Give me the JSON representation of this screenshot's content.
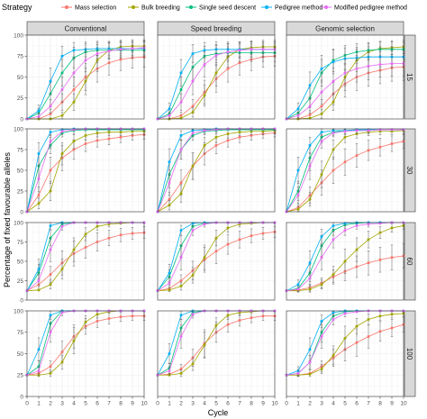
{
  "chart_data": {
    "type": "line",
    "legend_title": "Strategy",
    "legend_placement": "top",
    "xlabel": "Cycle",
    "ylabel": "Percentage of fixed favourable alleles",
    "xlim": [
      0,
      10
    ],
    "ylim": [
      0,
      100
    ],
    "x_ticks": [
      0,
      1,
      2,
      3,
      4,
      5,
      6,
      7,
      8,
      9,
      10
    ],
    "y_ticks": [
      0,
      25,
      50,
      75,
      100
    ],
    "grid": true,
    "error_bars": true,
    "columns": [
      "Conventional",
      "Speed breeding",
      "Genomic selection"
    ],
    "rows": [
      "15",
      "30",
      "60",
      "100"
    ],
    "series": [
      {
        "name": "Mass selection",
        "color": "#F8766D"
      },
      {
        "name": "Bulk breeding",
        "color": "#A3A500"
      },
      {
        "name": "Single seed descent",
        "color": "#00BF7D"
      },
      {
        "name": "Pedigree method",
        "color": "#00B0F6"
      },
      {
        "name": "Modified pedigree method",
        "color": "#E76BF3"
      }
    ],
    "panels": [
      {
        "row": "15",
        "column": "Conventional",
        "x": [
          0,
          1,
          2,
          3,
          4,
          5,
          6,
          7,
          8,
          9,
          10
        ],
        "values": [
          [
            0,
            0,
            6,
            20,
            35,
            50,
            60,
            67,
            71,
            73,
            74
          ],
          [
            0,
            0,
            0,
            4,
            20,
            45,
            70,
            82,
            86,
            87,
            87
          ],
          [
            0,
            7,
            30,
            55,
            73,
            80,
            82,
            82,
            82,
            82,
            82
          ],
          [
            0,
            10,
            45,
            75,
            82,
            83,
            84,
            84,
            84,
            84,
            84
          ],
          [
            0,
            3,
            15,
            35,
            55,
            70,
            78,
            81,
            83,
            84,
            85
          ]
        ]
      },
      {
        "row": "15",
        "column": "Speed breeding",
        "x": [
          0,
          1,
          2,
          3,
          4,
          5,
          6,
          7,
          8,
          9,
          10
        ],
        "values": [
          [
            0,
            0,
            4,
            15,
            32,
            48,
            60,
            67,
            71,
            74,
            75
          ],
          [
            0,
            0,
            1,
            8,
            28,
            55,
            74,
            83,
            85,
            86,
            86
          ],
          [
            0,
            6,
            35,
            62,
            75,
            78,
            79,
            79,
            79,
            79,
            79
          ],
          [
            0,
            12,
            55,
            78,
            82,
            83,
            83,
            83,
            83,
            83,
            83
          ],
          [
            0,
            4,
            20,
            45,
            65,
            76,
            80,
            82,
            83,
            83,
            83
          ]
        ]
      },
      {
        "row": "15",
        "column": "Genomic selection",
        "x": [
          0,
          1,
          2,
          3,
          4,
          5,
          6,
          7,
          8,
          9,
          10
        ],
        "values": [
          [
            0,
            0,
            5,
            15,
            30,
            42,
            50,
            55,
            58,
            61,
            62
          ],
          [
            0,
            0,
            1,
            6,
            20,
            50,
            70,
            80,
            84,
            85,
            86
          ],
          [
            0,
            7,
            25,
            55,
            70,
            76,
            80,
            82,
            83,
            83,
            83
          ],
          [
            0,
            12,
            40,
            60,
            68,
            72,
            73,
            74,
            74,
            74,
            74
          ],
          [
            0,
            4,
            15,
            32,
            45,
            55,
            60,
            63,
            65,
            66,
            66
          ]
        ]
      },
      {
        "row": "30",
        "column": "Conventional",
        "x": [
          0,
          1,
          2,
          3,
          4,
          5,
          6,
          7,
          8,
          9,
          10
        ],
        "values": [
          [
            0,
            20,
            50,
            65,
            75,
            82,
            86,
            88,
            90,
            92,
            93
          ],
          [
            0,
            10,
            25,
            70,
            85,
            92,
            95,
            96,
            96,
            97,
            97
          ],
          [
            0,
            55,
            80,
            95,
            98,
            99,
            99,
            99,
            99,
            99,
            99
          ],
          [
            0,
            70,
            96,
            99,
            100,
            100,
            100,
            100,
            100,
            100,
            100
          ],
          [
            0,
            40,
            85,
            97,
            99,
            100,
            100,
            100,
            100,
            100,
            100
          ]
        ]
      },
      {
        "row": "30",
        "column": "Speed breeding",
        "x": [
          0,
          1,
          2,
          3,
          4,
          5,
          6,
          7,
          8,
          9,
          10
        ],
        "values": [
          [
            0,
            15,
            35,
            55,
            70,
            80,
            86,
            90,
            92,
            94,
            95
          ],
          [
            0,
            8,
            22,
            55,
            80,
            90,
            94,
            96,
            97,
            97,
            98
          ],
          [
            0,
            45,
            75,
            92,
            97,
            98,
            99,
            99,
            99,
            99,
            99
          ],
          [
            0,
            60,
            92,
            98,
            99,
            100,
            100,
            100,
            100,
            100,
            100
          ],
          [
            0,
            35,
            75,
            95,
            98,
            99,
            100,
            100,
            100,
            100,
            100
          ]
        ]
      },
      {
        "row": "30",
        "column": "Genomic selection",
        "x": [
          0,
          1,
          2,
          3,
          4,
          5,
          6,
          7,
          8,
          9,
          10
        ],
        "values": [
          [
            0,
            5,
            20,
            35,
            50,
            60,
            68,
            74,
            78,
            82,
            85
          ],
          [
            0,
            3,
            15,
            45,
            75,
            90,
            94,
            96,
            97,
            97,
            98
          ],
          [
            0,
            25,
            65,
            90,
            96,
            98,
            98,
            98,
            99,
            99,
            99
          ],
          [
            0,
            50,
            80,
            96,
            98,
            98,
            99,
            99,
            99,
            99,
            99
          ],
          [
            0,
            20,
            55,
            85,
            95,
            97,
            98,
            98,
            99,
            99,
            99
          ]
        ]
      },
      {
        "row": "60",
        "column": "Conventional",
        "x": [
          0,
          1,
          2,
          3,
          4,
          5,
          6,
          7,
          8,
          9,
          10
        ],
        "values": [
          [
            12,
            20,
            33,
            48,
            60,
            68,
            75,
            80,
            84,
            86,
            87
          ],
          [
            12,
            13,
            20,
            40,
            65,
            85,
            95,
            98,
            99,
            100,
            100
          ],
          [
            12,
            35,
            80,
            98,
            100,
            100,
            100,
            100,
            100,
            100,
            100
          ],
          [
            12,
            40,
            96,
            100,
            100,
            100,
            100,
            100,
            100,
            100,
            100
          ],
          [
            12,
            25,
            65,
            95,
            100,
            100,
            100,
            100,
            100,
            100,
            100
          ]
        ]
      },
      {
        "row": "60",
        "column": "Speed breeding",
        "x": [
          0,
          1,
          2,
          3,
          4,
          5,
          6,
          7,
          8,
          9,
          10
        ],
        "values": [
          [
            12,
            15,
            25,
            38,
            52,
            63,
            72,
            78,
            83,
            86,
            88
          ],
          [
            12,
            13,
            18,
            32,
            55,
            80,
            93,
            98,
            99,
            100,
            100
          ],
          [
            12,
            30,
            70,
            95,
            99,
            100,
            100,
            100,
            100,
            100,
            100
          ],
          [
            12,
            35,
            90,
            99,
            100,
            100,
            100,
            100,
            100,
            100,
            100
          ],
          [
            12,
            22,
            55,
            90,
            98,
            100,
            100,
            100,
            100,
            100,
            100
          ]
        ]
      },
      {
        "row": "60",
        "column": "Genomic selection",
        "x": [
          0,
          1,
          2,
          3,
          4,
          5,
          6,
          7,
          8,
          9,
          10
        ],
        "values": [
          [
            12,
            13,
            16,
            22,
            30,
            37,
            43,
            48,
            52,
            55,
            57
          ],
          [
            12,
            12,
            14,
            20,
            33,
            50,
            65,
            78,
            87,
            93,
            96
          ],
          [
            12,
            15,
            35,
            70,
            90,
            97,
            99,
            100,
            100,
            100,
            100
          ],
          [
            12,
            20,
            48,
            82,
            96,
            99,
            100,
            100,
            100,
            100,
            100
          ],
          [
            12,
            14,
            28,
            55,
            78,
            90,
            96,
            98,
            99,
            100,
            100
          ]
        ]
      },
      {
        "row": "100",
        "column": "Conventional",
        "x": [
          0,
          1,
          2,
          3,
          4,
          5,
          6,
          7,
          8,
          9,
          10
        ],
        "values": [
          [
            25,
            27,
            35,
            52,
            70,
            82,
            88,
            91,
            93,
            94,
            94
          ],
          [
            25,
            25,
            27,
            40,
            65,
            87,
            96,
            99,
            100,
            100,
            100
          ],
          [
            25,
            35,
            85,
            100,
            100,
            100,
            100,
            100,
            100,
            100,
            100
          ],
          [
            25,
            55,
            95,
            100,
            100,
            100,
            100,
            100,
            100,
            100,
            100
          ],
          [
            25,
            30,
            75,
            98,
            100,
            100,
            100,
            100,
            100,
            100,
            100
          ]
        ]
      },
      {
        "row": "100",
        "column": "Speed breeding",
        "x": [
          0,
          1,
          2,
          3,
          4,
          5,
          6,
          7,
          8,
          9,
          10
        ],
        "values": [
          [
            25,
            26,
            32,
            45,
            62,
            75,
            84,
            89,
            92,
            94,
            94
          ],
          [
            25,
            25,
            27,
            38,
            60,
            83,
            95,
            98,
            99,
            100,
            100
          ],
          [
            25,
            33,
            80,
            98,
            100,
            100,
            100,
            100,
            100,
            100,
            100
          ],
          [
            25,
            50,
            95,
            100,
            100,
            100,
            100,
            100,
            100,
            100,
            100
          ],
          [
            25,
            30,
            70,
            96,
            100,
            100,
            100,
            100,
            100,
            100,
            100
          ]
        ]
      },
      {
        "row": "100",
        "column": "Genomic selection",
        "x": [
          0,
          1,
          2,
          3,
          4,
          5,
          6,
          7,
          8,
          9,
          10
        ],
        "values": [
          [
            25,
            25,
            27,
            35,
            45,
            55,
            63,
            70,
            76,
            80,
            84
          ],
          [
            25,
            25,
            26,
            32,
            48,
            68,
            82,
            90,
            94,
            96,
            97
          ],
          [
            25,
            27,
            40,
            75,
            94,
            99,
            100,
            100,
            100,
            100,
            100
          ],
          [
            25,
            30,
            55,
            88,
            98,
            100,
            100,
            100,
            100,
            100,
            100
          ],
          [
            25,
            27,
            40,
            70,
            90,
            97,
            99,
            100,
            100,
            100,
            100
          ]
        ]
      }
    ]
  }
}
